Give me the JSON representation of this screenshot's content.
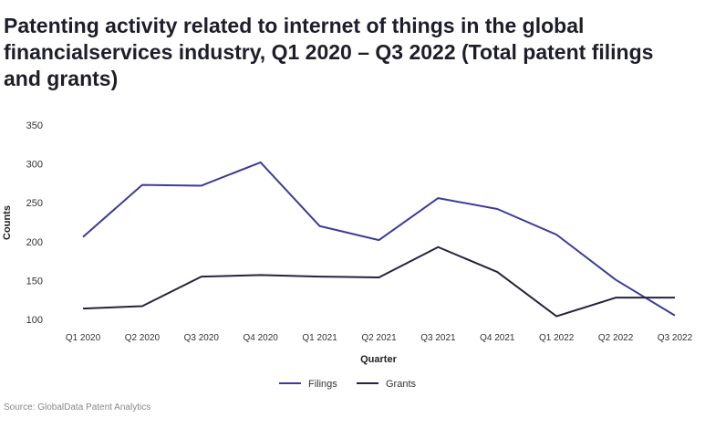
{
  "chart_data": {
    "type": "line",
    "title": "Patenting activity related to internet of things in the global financialservices industry, Q1 2020 – Q3 2022 (Total patent filings and grants)",
    "xlabel": "Quarter",
    "ylabel": "Counts",
    "ylim": [
      100,
      350
    ],
    "yticks": [
      100,
      150,
      200,
      250,
      300,
      350
    ],
    "grid": false,
    "legend_placement": "bottom",
    "categories": [
      "Q1 2020",
      "Q2 2020",
      "Q3 2020",
      "Q4 2020",
      "Q1 2021",
      "Q2 2021",
      "Q3 2021",
      "Q4 2021",
      "Q1 2022",
      "Q2 2022",
      "Q3 2022"
    ],
    "series": [
      {
        "name": "Filings",
        "color": "#3a3d96",
        "values": [
          206,
          273,
          272,
          302,
          220,
          202,
          256,
          242,
          209,
          151,
          105
        ]
      },
      {
        "name": "Grants",
        "color": "#25233f",
        "values": [
          114,
          117,
          155,
          157,
          155,
          154,
          193,
          161,
          104,
          128,
          128
        ]
      }
    ]
  },
  "source": "Source: GlobalData Patent Analytics"
}
